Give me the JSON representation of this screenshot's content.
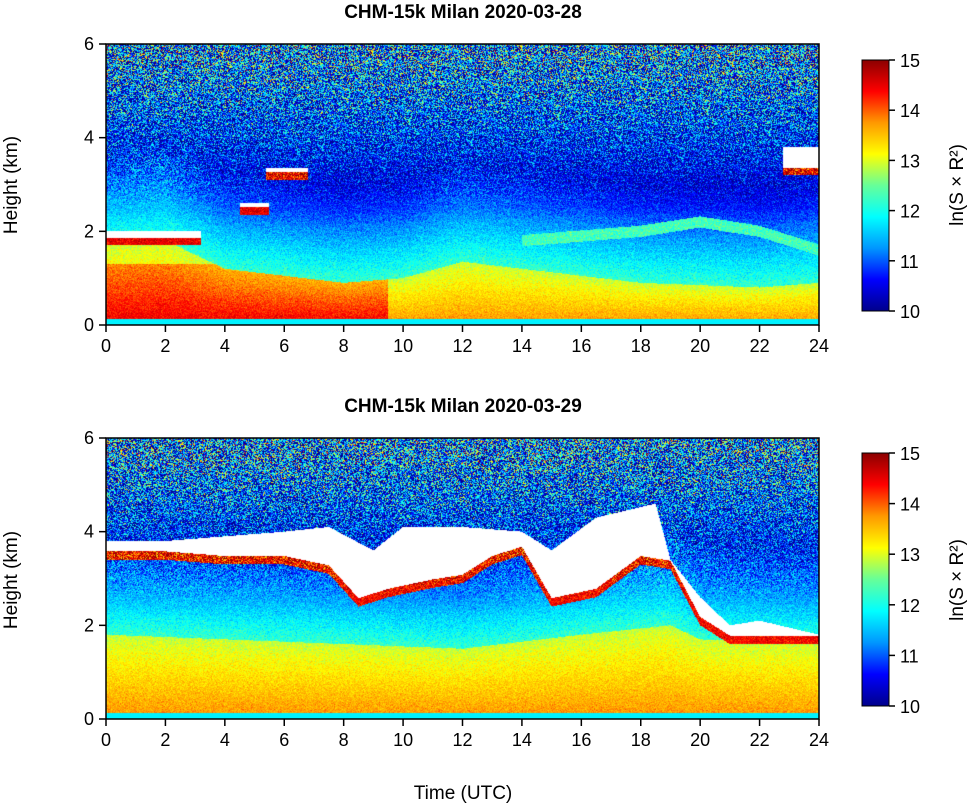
{
  "chart_data": [
    {
      "type": "heatmap",
      "title": "CHM-15k Milan 2020-03-28",
      "xlabel": "",
      "ylabel": "Height (km)",
      "xlim": [
        0,
        24
      ],
      "ylim": [
        0,
        6
      ],
      "xticks": [
        "0",
        "2",
        "4",
        "6",
        "8",
        "10",
        "12",
        "14",
        "16",
        "18",
        "20",
        "22",
        "24"
      ],
      "yticks": [
        "0",
        "2",
        "4",
        "6"
      ],
      "colorbar": {
        "label": "ln(S × R²)",
        "range": [
          10,
          15
        ],
        "ticks": [
          "10",
          "11",
          "12",
          "13",
          "14",
          "15"
        ],
        "colormap": [
          "#00008b",
          "#0000ff",
          "#0096ff",
          "#00ffff",
          "#66ff99",
          "#ffff00",
          "#ff9900",
          "#ff0000",
          "#8b0000"
        ]
      },
      "features": {
        "aerosol_layer_top_km": [
          [
            0,
            1.7
          ],
          [
            2,
            1.8
          ],
          [
            4,
            1.2
          ],
          [
            8,
            0.9
          ],
          [
            10,
            1.0
          ],
          [
            12,
            1.35
          ],
          [
            14,
            1.2
          ],
          [
            18,
            0.9
          ],
          [
            22,
            0.8
          ],
          [
            24,
            0.9
          ]
        ],
        "clouds": [
          {
            "t_start": 0,
            "t_end": 3.2,
            "base_km": 1.8,
            "top_km": 2.0
          },
          {
            "t_start": 4.5,
            "t_end": 5.5,
            "base_km": 2.45,
            "top_km": 2.6
          },
          {
            "t_start": 5.4,
            "t_end": 6.8,
            "base_km": 3.2,
            "top_km": 3.35
          },
          {
            "t_start": 22.8,
            "t_end": 24,
            "base_km": 3.3,
            "top_km": 3.8
          }
        ],
        "elevated_aerosol_layer": [
          [
            14,
            1.8
          ],
          [
            18,
            2.0
          ],
          [
            20,
            2.2
          ],
          [
            22,
            2.0
          ],
          [
            24,
            1.6
          ]
        ]
      }
    },
    {
      "type": "heatmap",
      "title": "CHM-15k Milan 2020-03-29",
      "xlabel": "Time (UTC)",
      "ylabel": "Height (km)",
      "xlim": [
        0,
        24
      ],
      "ylim": [
        0,
        6
      ],
      "xticks": [
        "0",
        "2",
        "4",
        "6",
        "8",
        "10",
        "12",
        "14",
        "16",
        "18",
        "20",
        "22",
        "24"
      ],
      "yticks": [
        "0",
        "2",
        "4",
        "6"
      ],
      "colorbar": {
        "label": "ln(S × R²)",
        "range": [
          10,
          15
        ],
        "ticks": [
          "10",
          "11",
          "12",
          "13",
          "14",
          "15"
        ],
        "colormap": [
          "#00008b",
          "#0000ff",
          "#0096ff",
          "#00ffff",
          "#66ff99",
          "#ffff00",
          "#ff9900",
          "#ff0000",
          "#8b0000"
        ]
      },
      "features": {
        "aerosol_layer_top_km": [
          [
            0,
            1.8
          ],
          [
            4,
            1.7
          ],
          [
            8,
            1.6
          ],
          [
            12,
            1.5
          ],
          [
            16,
            1.8
          ],
          [
            19,
            2.0
          ],
          [
            20,
            1.7
          ],
          [
            24,
            1.6
          ]
        ],
        "cloud_base_km": [
          [
            0,
            3.4
          ],
          [
            2,
            3.4
          ],
          [
            4,
            3.3
          ],
          [
            6,
            3.3
          ],
          [
            7.5,
            3.1
          ],
          [
            8.5,
            2.4
          ],
          [
            9.5,
            2.6
          ],
          [
            11,
            2.8
          ],
          [
            12,
            2.9
          ],
          [
            13,
            3.3
          ],
          [
            14,
            3.5
          ],
          [
            15,
            2.4
          ],
          [
            16.5,
            2.6
          ],
          [
            18,
            3.3
          ],
          [
            19,
            3.2
          ],
          [
            20,
            2.0
          ],
          [
            21,
            1.6
          ],
          [
            22,
            1.6
          ],
          [
            24,
            1.6
          ]
        ],
        "cloud_top_km": [
          [
            0,
            3.8
          ],
          [
            2,
            3.8
          ],
          [
            4,
            3.9
          ],
          [
            6,
            4.0
          ],
          [
            7.5,
            4.1
          ],
          [
            9,
            3.6
          ],
          [
            10,
            4.1
          ],
          [
            12,
            4.1
          ],
          [
            14,
            4.0
          ],
          [
            15,
            3.6
          ],
          [
            16.5,
            4.3
          ],
          [
            18.5,
            4.6
          ],
          [
            19,
            3.4
          ],
          [
            20,
            2.6
          ],
          [
            21,
            2.0
          ],
          [
            22,
            2.1
          ],
          [
            24,
            1.8
          ]
        ]
      }
    }
  ]
}
